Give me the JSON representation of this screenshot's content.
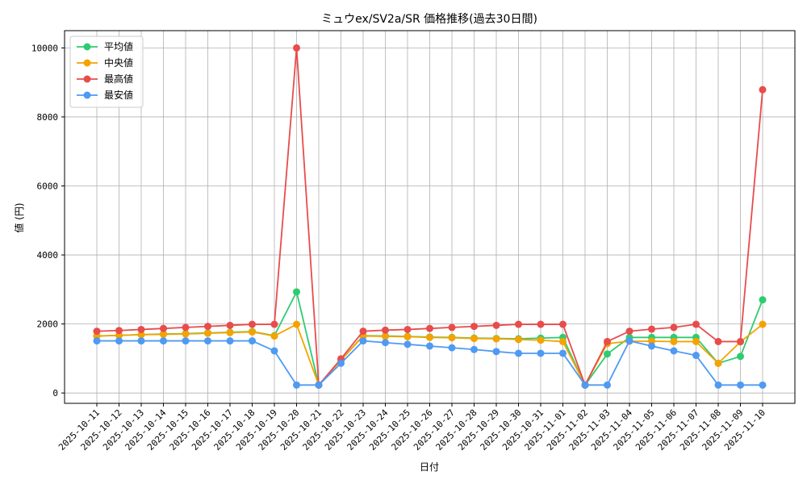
{
  "chart_data": {
    "type": "line",
    "title": "ミュウex/SV2a/SR 価格推移(過去30日間)",
    "xlabel": "日付",
    "ylabel": "値 (円)",
    "ylim": [
      -300,
      10500
    ],
    "yticks": [
      0,
      2000,
      4000,
      6000,
      8000,
      10000
    ],
    "grid": true,
    "legend_position": "top-left",
    "categories": [
      "2025-10-11",
      "2025-10-12",
      "2025-10-13",
      "2025-10-14",
      "2025-10-15",
      "2025-10-16",
      "2025-10-17",
      "2025-10-18",
      "2025-10-19",
      "2025-10-20",
      "2025-10-21",
      "2025-10-22",
      "2025-10-23",
      "2025-10-24",
      "2025-10-25",
      "2025-10-26",
      "2025-10-27",
      "2025-10-28",
      "2025-10-29",
      "2025-10-30",
      "2025-10-31",
      "2025-11-01",
      "2025-11-02",
      "2025-11-03",
      "2025-11-04",
      "2025-11-05",
      "2025-11-06",
      "2025-11-07",
      "2025-11-08",
      "2025-11-09",
      "2025-11-10"
    ],
    "series": [
      {
        "name": "平均値",
        "color": "#2ecc71",
        "values": [
          1650,
          1670,
          1690,
          1710,
          1720,
          1740,
          1760,
          1780,
          1660,
          2930,
          230,
          950,
          1660,
          1650,
          1640,
          1620,
          1610,
          1590,
          1580,
          1570,
          1590,
          1610,
          230,
          1130,
          1610,
          1610,
          1610,
          1610,
          860,
          1060,
          2700
        ]
      },
      {
        "name": "中央値",
        "color": "#f5a300",
        "values": [
          1650,
          1670,
          1690,
          1700,
          1710,
          1730,
          1750,
          1770,
          1650,
          1990,
          230,
          950,
          1650,
          1640,
          1630,
          1610,
          1600,
          1580,
          1570,
          1550,
          1530,
          1490,
          230,
          1430,
          1500,
          1500,
          1490,
          1490,
          860,
          1480,
          1990
        ]
      },
      {
        "name": "最高値",
        "color": "#e84c4c",
        "values": [
          1790,
          1810,
          1840,
          1870,
          1900,
          1930,
          1960,
          1990,
          1990,
          10000,
          230,
          990,
          1790,
          1820,
          1840,
          1870,
          1900,
          1930,
          1960,
          1990,
          1990,
          1990,
          230,
          1490,
          1790,
          1850,
          1900,
          1990,
          1490,
          1490,
          8790
        ]
      },
      {
        "name": "最安値",
        "color": "#4f9af2",
        "values": [
          1510,
          1510,
          1510,
          1510,
          1510,
          1510,
          1510,
          1510,
          1220,
          230,
          230,
          860,
          1510,
          1460,
          1410,
          1360,
          1310,
          1260,
          1200,
          1150,
          1150,
          1150,
          230,
          230,
          1510,
          1360,
          1220,
          1090,
          230,
          230,
          230
        ]
      }
    ]
  }
}
